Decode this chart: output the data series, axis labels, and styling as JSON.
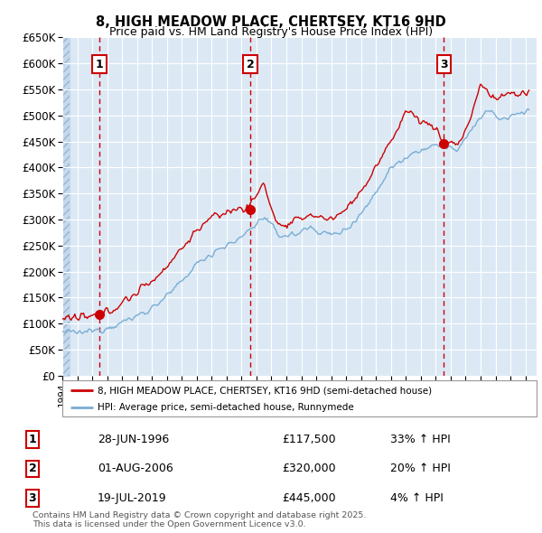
{
  "title": "8, HIGH MEADOW PLACE, CHERTSEY, KT16 9HD",
  "subtitle": "Price paid vs. HM Land Registry's House Price Index (HPI)",
  "background_color": "#dce9f5",
  "plot_bg_color": "#dce9f5",
  "grid_color": "#ffffff",
  "ylim": [
    0,
    650000
  ],
  "yticks": [
    0,
    50000,
    100000,
    150000,
    200000,
    250000,
    300000,
    350000,
    400000,
    450000,
    500000,
    550000,
    600000,
    650000
  ],
  "ytick_labels": [
    "£0",
    "£50K",
    "£100K",
    "£150K",
    "£200K",
    "£250K",
    "£300K",
    "£350K",
    "£400K",
    "£450K",
    "£500K",
    "£550K",
    "£600K",
    "£650K"
  ],
  "xlim_start": 1994.0,
  "xlim_end": 2025.75,
  "sale_dates": [
    1996.49,
    2006.58,
    2019.54
  ],
  "sale_prices": [
    117500,
    320000,
    445000
  ],
  "sale_labels": [
    "1",
    "2",
    "3"
  ],
  "sale_date_strings": [
    "28-JUN-1996",
    "01-AUG-2006",
    "19-JUL-2019"
  ],
  "sale_price_strings": [
    "£117,500",
    "£320,000",
    "£445,000"
  ],
  "sale_hpi_strings": [
    "33% ↑ HPI",
    "20% ↑ HPI",
    "4% ↑ HPI"
  ],
  "red_line_color": "#cc0000",
  "blue_line_color": "#7aadd4",
  "marker_color": "#cc0000",
  "dashed_line_color": "#cc0000",
  "legend_label_red": "8, HIGH MEADOW PLACE, CHERTSEY, KT16 9HD (semi-detached house)",
  "legend_label_blue": "HPI: Average price, semi-detached house, Runnymede",
  "footnote": "Contains HM Land Registry data © Crown copyright and database right 2025.\nThis data is licensed under the Open Government Licence v3.0."
}
